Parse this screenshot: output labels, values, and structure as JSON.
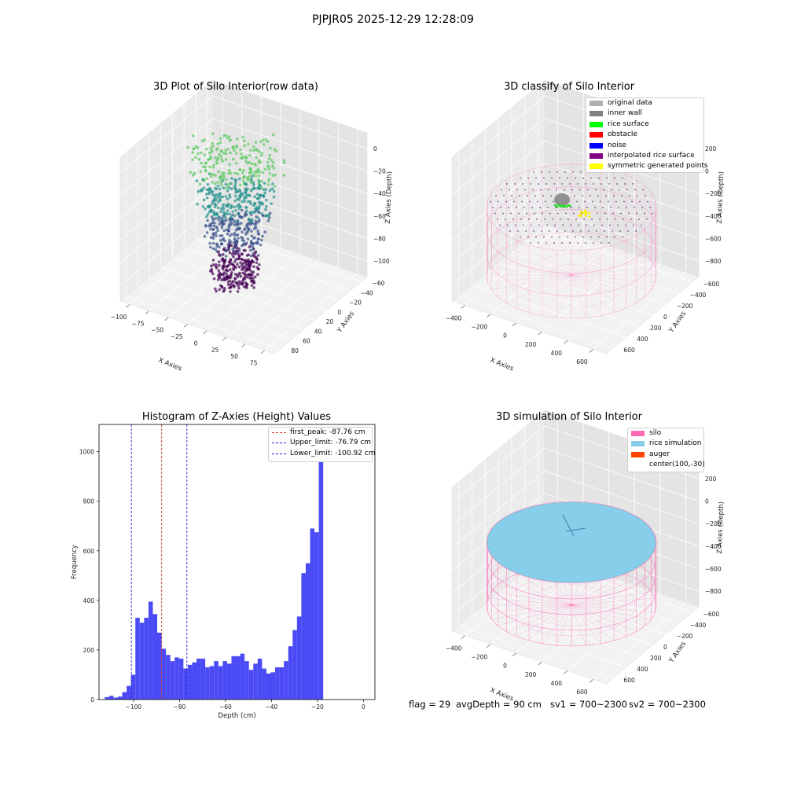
{
  "figure": {
    "suptitle": "PJPJR05 2025-12-29 12:28:09"
  },
  "panel_raw": {
    "title": "3D Plot of Silo Interior(row data)",
    "xlabel": "X Axies",
    "ylabel": "Y Axies",
    "zlabel": "Z Axies (Depth)",
    "xticks": [
      "−100",
      "−75",
      "−50",
      "−25",
      "0",
      "25",
      "50",
      "75"
    ],
    "yticks": [
      "−60",
      "−40",
      "−20",
      "0",
      "20",
      "40",
      "60",
      "80"
    ],
    "zticks": [
      "0",
      "−20",
      "−40",
      "−60",
      "−80",
      "−100"
    ]
  },
  "panel_classify": {
    "title": "3D classify of Silo Interior",
    "xlabel": "X Axies",
    "ylabel": "Y Axies",
    "zlabel": "Z Axies (Depth)",
    "xticks": [
      "−400",
      "−200",
      "0",
      "200",
      "400",
      "600"
    ],
    "yticks": [
      "−600",
      "−400",
      "−200",
      "0",
      "200",
      "400",
      "600"
    ],
    "zticks": [
      "200",
      "0",
      "−200",
      "−400",
      "−600",
      "−800"
    ],
    "legend": [
      {
        "label": "original data",
        "color": "#b0b0b0"
      },
      {
        "label": "inner wall",
        "color": "#808080"
      },
      {
        "label": "rice surface",
        "color": "#00ff00"
      },
      {
        "label": "obstacle",
        "color": "#ff0000"
      },
      {
        "label": "noise",
        "color": "#0000ff"
      },
      {
        "label": "interpolated rice surface",
        "color": "#800080"
      },
      {
        "label": "symmetric generated points",
        "color": "#ffff00"
      }
    ]
  },
  "panel_sim": {
    "title": "3D simulation of Silo Interior",
    "xlabel": "X Axies",
    "ylabel": "Y Axies",
    "zlabel": "Z Axies (Depth)",
    "xticks": [
      "−400",
      "−200",
      "0",
      "200",
      "400",
      "600"
    ],
    "yticks": [
      "−600",
      "−400",
      "−200",
      "0",
      "200",
      "400",
      "600"
    ],
    "zticks": [
      "200",
      "0",
      "−200",
      "−400",
      "−600",
      "−800"
    ],
    "legend": [
      {
        "label": "silo",
        "color": "#ff69b4"
      },
      {
        "label": "rice simulation",
        "color": "#87ceeb"
      },
      {
        "label": "auger",
        "color": "#ff4500"
      },
      {
        "label": "center(100,-30)",
        "color": "#ffffff"
      }
    ]
  },
  "footer": {
    "flag": "flag = 29",
    "avg_depth": "avgDepth = 90 cm",
    "sv1": "sv1 = 700~2300",
    "sv2": "sv2 = 700~2300"
  },
  "chart_data": {
    "type": "bar",
    "title": "Histogram of Z-Axies (Height) Values",
    "xlabel": "Depth (cm)",
    "ylabel": "Frequency",
    "xlim": [
      -115,
      5
    ],
    "ylim": [
      0,
      1110
    ],
    "xticks": [
      -100,
      -80,
      -60,
      -40,
      -20,
      0
    ],
    "yticks": [
      0,
      200,
      400,
      600,
      800,
      1000
    ],
    "xtick_labels": [
      "−100",
      "−80",
      "−60",
      "−40",
      "−20",
      "0"
    ],
    "bin_start": -112.5,
    "bin_width": 1.9,
    "values": [
      10,
      15,
      8,
      12,
      30,
      55,
      100,
      330,
      310,
      330,
      395,
      345,
      270,
      205,
      180,
      155,
      170,
      165,
      125,
      140,
      150,
      165,
      165,
      130,
      135,
      155,
      135,
      155,
      145,
      175,
      175,
      185,
      155,
      120,
      145,
      165,
      125,
      105,
      110,
      130,
      130,
      155,
      215,
      280,
      335,
      510,
      550,
      690,
      675,
      1060
    ],
    "bar_color": "#4b4bf5",
    "grid": false,
    "legend_position": "upper right",
    "vlines": [
      {
        "label": "first_peak: -87.76 cm",
        "x": -87.76,
        "color": "#e03030"
      },
      {
        "label": "Upper_limit: -76.79 cm",
        "x": -76.79,
        "color": "#2222cc"
      },
      {
        "label": "Lower_limit: -100.92 cm",
        "x": -100.92,
        "color": "#2222cc"
      }
    ]
  }
}
